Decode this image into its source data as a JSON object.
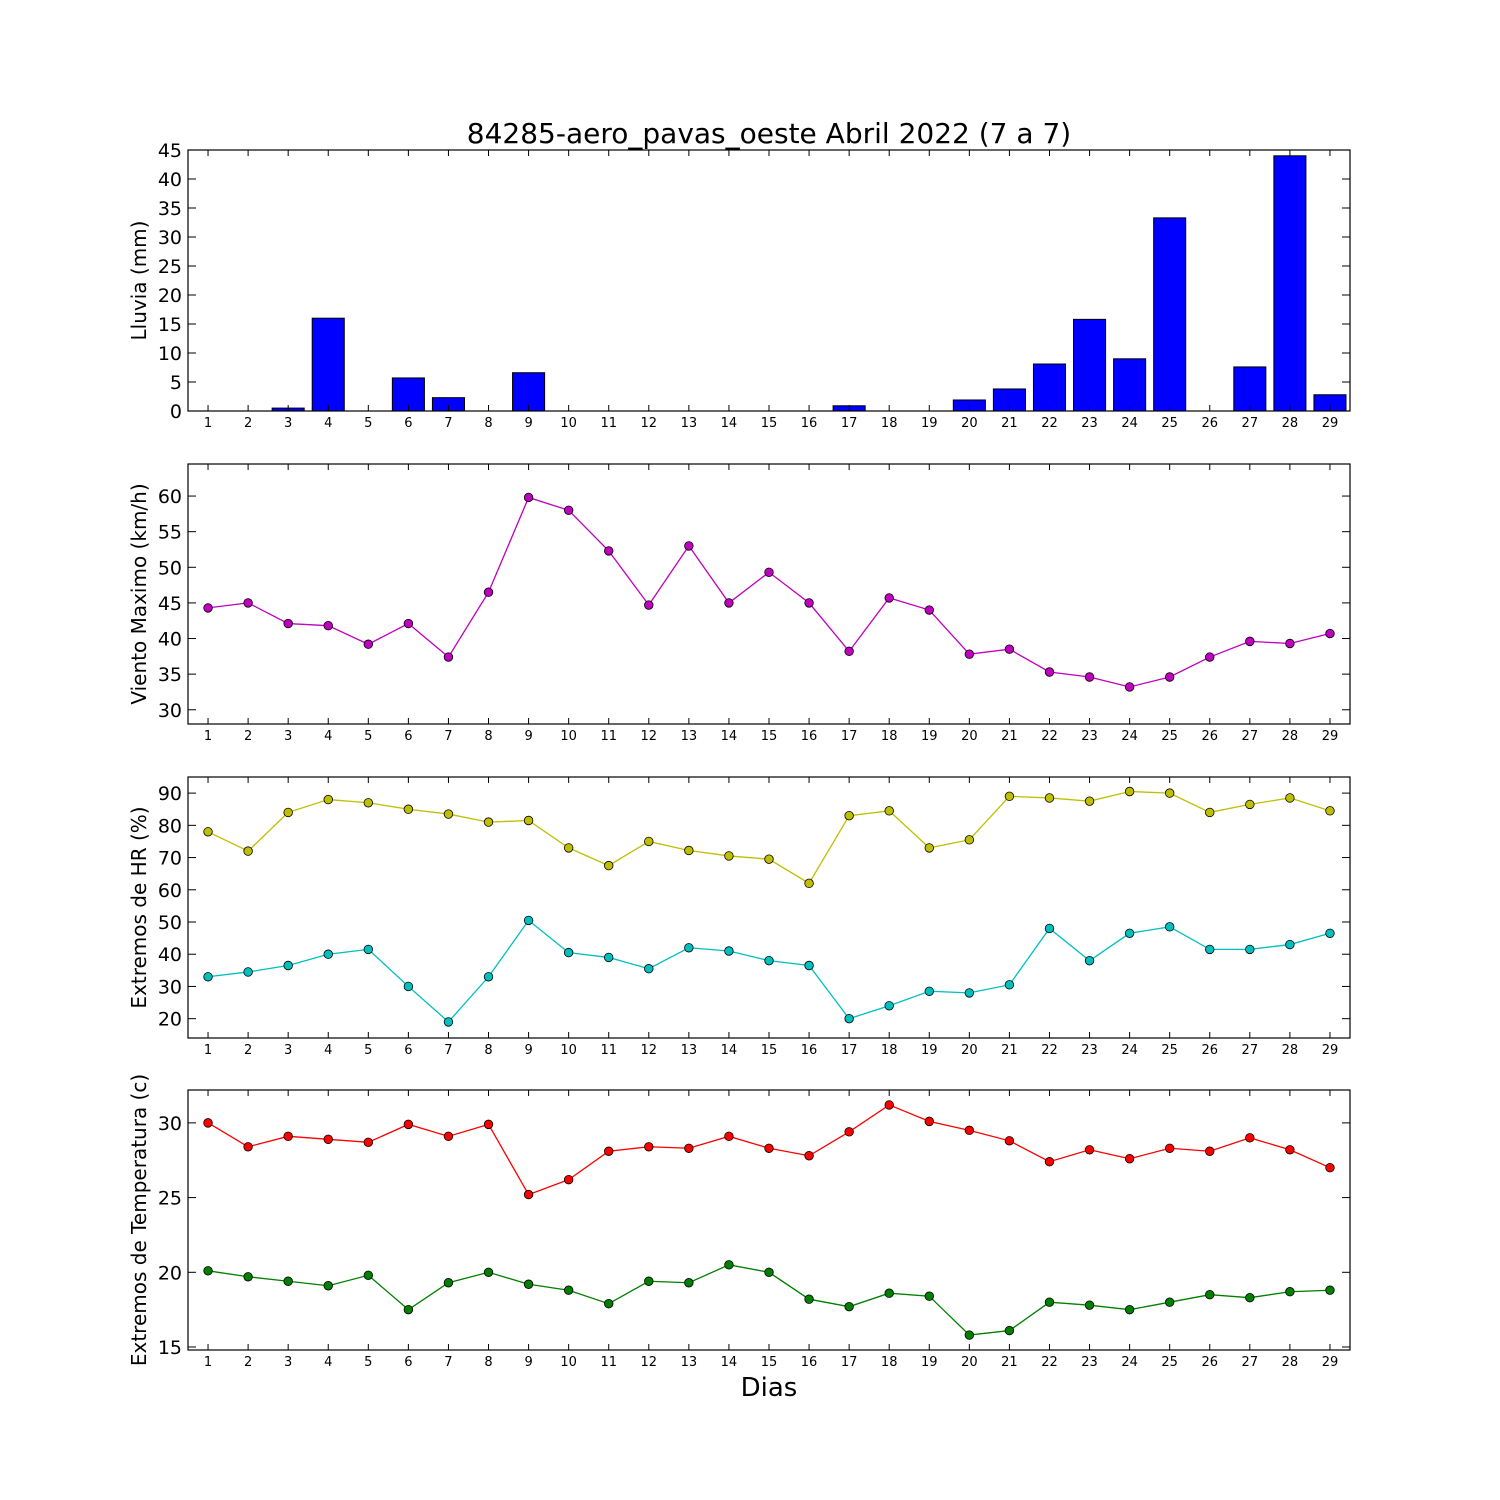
{
  "title": "84285-aero_pavas_oeste Abril 2022  (7 a 7)",
  "xlabel": "Dias",
  "chart_data": [
    {
      "type": "bar",
      "ylabel": "Lluvia (mm)",
      "ylim": [
        0,
        45
      ],
      "yticks": [
        0,
        5,
        10,
        15,
        20,
        25,
        30,
        35,
        40,
        45
      ],
      "x": [
        1,
        2,
        3,
        4,
        5,
        6,
        7,
        8,
        9,
        10,
        11,
        12,
        13,
        14,
        15,
        16,
        17,
        18,
        19,
        20,
        21,
        22,
        23,
        24,
        25,
        26,
        27,
        28,
        29
      ],
      "series": [
        {
          "color": "#0000ff",
          "values": [
            0,
            0,
            0.5,
            16,
            0,
            5.7,
            2.3,
            0,
            6.6,
            0,
            0,
            0,
            0,
            0,
            0,
            0,
            0.9,
            0,
            0,
            1.9,
            3.8,
            8.1,
            15.8,
            9.0,
            33.3,
            0,
            7.6,
            44.0,
            2.8
          ]
        }
      ]
    },
    {
      "type": "line",
      "ylabel": "Viento Maximo (km/h)",
      "ylim": [
        28,
        64.5
      ],
      "yticks": [
        30,
        35,
        40,
        45,
        50,
        55,
        60
      ],
      "x": [
        1,
        2,
        3,
        4,
        5,
        6,
        7,
        8,
        9,
        10,
        11,
        12,
        13,
        14,
        15,
        16,
        17,
        18,
        19,
        20,
        21,
        22,
        23,
        24,
        25,
        26,
        27,
        28,
        29
      ],
      "series": [
        {
          "color": "#bf00bf",
          "values": [
            44.3,
            45.0,
            42.1,
            41.8,
            39.2,
            42.1,
            37.4,
            46.5,
            59.8,
            58.0,
            52.3,
            44.7,
            53.0,
            45.0,
            49.3,
            45.0,
            38.2,
            45.7,
            44.0,
            37.8,
            38.5,
            35.3,
            34.6,
            33.2,
            34.6,
            37.4,
            39.6,
            39.3,
            40.7
          ]
        }
      ]
    },
    {
      "type": "line",
      "ylabel": "Extremos de HR (%)",
      "ylim": [
        14,
        95
      ],
      "yticks": [
        20,
        30,
        40,
        50,
        60,
        70,
        80,
        90
      ],
      "x": [
        1,
        2,
        3,
        4,
        5,
        6,
        7,
        8,
        9,
        10,
        11,
        12,
        13,
        14,
        15,
        16,
        17,
        18,
        19,
        20,
        21,
        22,
        23,
        24,
        25,
        26,
        27,
        28,
        29
      ],
      "series": [
        {
          "color": "#bfbf00",
          "values": [
            78,
            72,
            84,
            88,
            87,
            85,
            83.5,
            81,
            81.5,
            73,
            67.5,
            75,
            72.2,
            70.5,
            69.5,
            62,
            83,
            84.5,
            73,
            75.5,
            89,
            88.5,
            87.5,
            90.5,
            90,
            84,
            86.5,
            88.5,
            84.5
          ]
        },
        {
          "color": "#00bfbf",
          "values": [
            33,
            34.5,
            36.5,
            40,
            41.5,
            30,
            19,
            33,
            50.5,
            40.5,
            39,
            35.5,
            42,
            41,
            38,
            36.5,
            20,
            24,
            28.5,
            28,
            30.5,
            48,
            38,
            46.5,
            48.5,
            41.5,
            41.5,
            43,
            46.5
          ]
        }
      ]
    },
    {
      "type": "line",
      "ylabel": "Extremos de Temperatura (c)",
      "ylim": [
        14.8,
        32.2
      ],
      "yticks": [
        15,
        20,
        25,
        30
      ],
      "x": [
        1,
        2,
        3,
        4,
        5,
        6,
        7,
        8,
        9,
        10,
        11,
        12,
        13,
        14,
        15,
        16,
        17,
        18,
        19,
        20,
        21,
        22,
        23,
        24,
        25,
        26,
        27,
        28,
        29
      ],
      "series": [
        {
          "color": "#ff0000",
          "values": [
            30.0,
            28.4,
            29.1,
            28.9,
            28.7,
            29.9,
            29.1,
            29.9,
            25.2,
            26.2,
            28.1,
            28.4,
            28.3,
            29.1,
            28.3,
            27.8,
            29.4,
            31.2,
            30.1,
            29.5,
            28.8,
            27.4,
            28.2,
            27.6,
            28.3,
            28.1,
            29.0,
            28.2,
            27.0
          ]
        },
        {
          "color": "#007f00",
          "values": [
            20.1,
            19.7,
            19.4,
            19.1,
            19.8,
            17.5,
            19.3,
            20.0,
            19.2,
            18.8,
            17.9,
            19.4,
            19.3,
            20.5,
            20.0,
            18.2,
            17.7,
            18.6,
            18.4,
            15.8,
            16.1,
            18.0,
            17.8,
            17.5,
            18.0,
            18.5,
            18.3,
            18.7,
            18.8
          ]
        }
      ]
    }
  ]
}
